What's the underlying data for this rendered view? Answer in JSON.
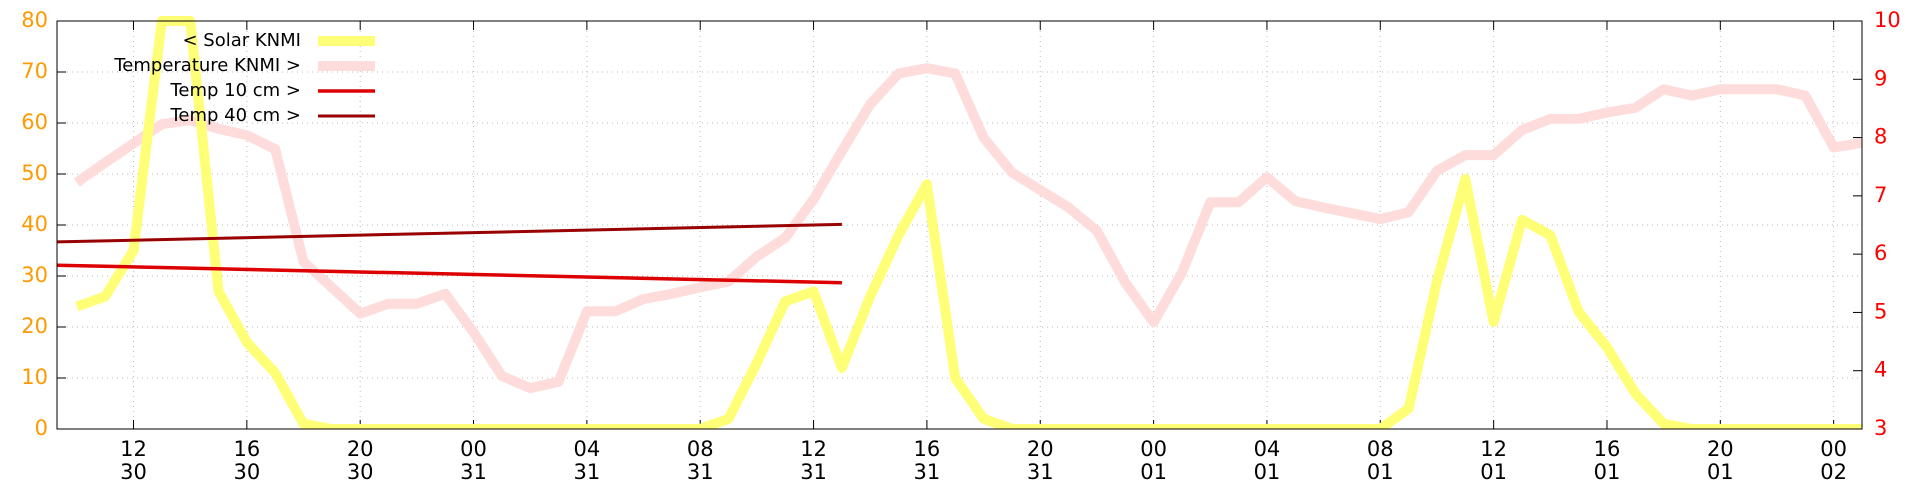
{
  "chart_data": {
    "type": "line",
    "x": [
      10,
      11,
      12,
      13,
      14,
      15,
      16,
      17,
      18,
      19,
      20,
      21,
      22,
      23,
      24,
      25,
      26,
      27,
      28,
      29,
      30,
      31,
      32,
      33,
      34,
      35,
      36,
      37,
      38,
      39,
      40,
      41,
      42,
      43,
      44,
      45,
      46,
      47,
      48,
      49,
      50,
      51,
      52,
      53,
      54,
      55,
      56,
      57,
      58,
      59,
      60,
      61,
      62,
      63,
      64,
      65,
      66,
      67,
      68,
      69,
      70,
      71,
      72,
      73
    ],
    "xlim": [
      9.3,
      73.0
    ],
    "xticks": [
      {
        "value": 12,
        "label": [
          "12",
          "30"
        ]
      },
      {
        "value": 16,
        "label": [
          "16",
          "30"
        ]
      },
      {
        "value": 20,
        "label": [
          "20",
          "30"
        ]
      },
      {
        "value": 24,
        "label": [
          "00",
          "31"
        ]
      },
      {
        "value": 28,
        "label": [
          "04",
          "31"
        ]
      },
      {
        "value": 32,
        "label": [
          "08",
          "31"
        ]
      },
      {
        "value": 36,
        "label": [
          "12",
          "31"
        ]
      },
      {
        "value": 40,
        "label": [
          "16",
          "31"
        ]
      },
      {
        "value": 44,
        "label": [
          "20",
          "31"
        ]
      },
      {
        "value": 48,
        "label": [
          "00",
          "01"
        ]
      },
      {
        "value": 52,
        "label": [
          "04",
          "01"
        ]
      },
      {
        "value": 56,
        "label": [
          "08",
          "01"
        ]
      },
      {
        "value": 60,
        "label": [
          "12",
          "01"
        ]
      },
      {
        "value": 64,
        "label": [
          "16",
          "01"
        ]
      },
      {
        "value": 68,
        "label": [
          "20",
          "01"
        ]
      },
      {
        "value": 72,
        "label": [
          "00",
          "02"
        ]
      }
    ],
    "ylim": [
      0,
      80
    ],
    "yticks": [
      0,
      10,
      20,
      30,
      40,
      50,
      60,
      70,
      80
    ],
    "ytick_color": "#ff9900",
    "y2lim": [
      3,
      10
    ],
    "y2ticks": [
      3,
      4,
      5,
      6,
      7,
      8,
      9,
      10
    ],
    "y2tick_color": "#ff0000",
    "grid": true,
    "legend": "top-left",
    "series": [
      {
        "name": "< Solar KNMI",
        "color": "#ffff77",
        "width": 10,
        "values": [
          24,
          26,
          35,
          80,
          80,
          27,
          17,
          11,
          1,
          0,
          0,
          0,
          0,
          0,
          0,
          0,
          0,
          0,
          0,
          0,
          0,
          0,
          0,
          2,
          13,
          25,
          27,
          12,
          26,
          38,
          48,
          10,
          2,
          0,
          0,
          0,
          0,
          0,
          0,
          0,
          0,
          0,
          0,
          0,
          0,
          0,
          0,
          4,
          29,
          49,
          21,
          41,
          38,
          23,
          16,
          7,
          1,
          0,
          0,
          0,
          0,
          0,
          0,
          0
        ]
      },
      {
        "name": "Temperature KNMI >",
        "color": "#ffdcdc",
        "width": 10,
        "axis": "y2",
        "values": [
          7.23,
          7.57,
          7.9,
          8.23,
          8.3,
          8.15,
          8.04,
          7.8,
          5.87,
          5.43,
          4.98,
          5.15,
          5.15,
          5.32,
          4.66,
          3.91,
          3.7,
          3.81,
          5.02,
          5.02,
          5.23,
          5.32,
          5.43,
          5.53,
          5.96,
          6.28,
          6.94,
          7.77,
          8.57,
          9.1,
          9.19,
          9.1,
          8.0,
          7.4,
          7.1,
          6.8,
          6.4,
          5.51,
          4.83,
          5.68,
          6.89,
          6.89,
          7.32,
          6.91,
          6.8,
          6.7,
          6.6,
          6.72,
          7.43,
          7.7,
          7.7,
          8.13,
          8.32,
          8.32,
          8.43,
          8.51,
          8.83,
          8.72,
          8.83,
          8.83,
          8.83,
          8.72,
          7.83,
          7.91
        ]
      },
      {
        "name": "Temp 10 cm >",
        "color": "#dd0000",
        "width": 3.5,
        "axis": "y2",
        "x": [
          9.3,
          37
        ],
        "values": [
          5.81,
          5.51
        ]
      },
      {
        "name": "Temp 40 cm >",
        "color": "#990000",
        "width": 3,
        "axis": "y2",
        "x": [
          9.3,
          37
        ],
        "values": [
          6.21,
          6.51
        ]
      }
    ]
  }
}
